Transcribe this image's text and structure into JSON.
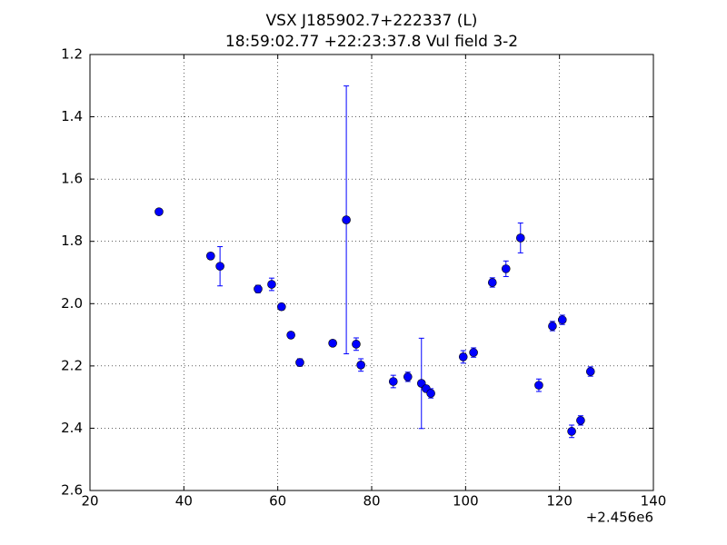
{
  "chart_data": {
    "type": "scatter",
    "title": "VSX J185902.7+222337 (L)",
    "subtitle": "18:59:02.77 +22:23:37.8 Vul field 3-2",
    "x_offset_label": "+2.456e6",
    "color": "#0000ff",
    "x": [
      34.7,
      45.7,
      47.7,
      55.8,
      58.7,
      60.8,
      62.8,
      64.7,
      71.7,
      74.6,
      76.7,
      77.7,
      84.6,
      87.7,
      90.6,
      91.6,
      92.6,
      99.5,
      101.7,
      105.7,
      108.6,
      111.7,
      115.6,
      118.5,
      120.6,
      122.6,
      124.5,
      126.6
    ],
    "values": [
      1.705,
      1.847,
      1.88,
      1.953,
      1.938,
      2.01,
      2.101,
      2.189,
      2.127,
      1.731,
      2.13,
      2.197,
      2.25,
      2.235,
      2.256,
      2.273,
      2.288,
      2.171,
      2.157,
      1.932,
      1.888,
      1.789,
      2.262,
      2.072,
      2.052,
      2.41,
      2.375,
      2.218
    ],
    "errors": [
      0.005,
      0.01,
      0.063,
      0.012,
      0.02,
      0.01,
      0.01,
      0.012,
      0.008,
      0.43,
      0.02,
      0.02,
      0.02,
      0.015,
      0.145,
      0.01,
      0.015,
      0.02,
      0.015,
      0.015,
      0.025,
      0.048,
      0.02,
      0.015,
      0.015,
      0.02,
      0.015,
      0.015
    ],
    "xlim": [
      20,
      140
    ],
    "xticks": [
      20,
      40,
      60,
      80,
      100,
      120,
      140
    ],
    "ylim": [
      1.2,
      2.6
    ],
    "y_inverted": true,
    "yticks": [
      1.2,
      1.4,
      1.6,
      1.8,
      {
        "value": 2,
        "label": "2.0"
      },
      2.2,
      2.4,
      2.6
    ],
    "grid": true
  }
}
